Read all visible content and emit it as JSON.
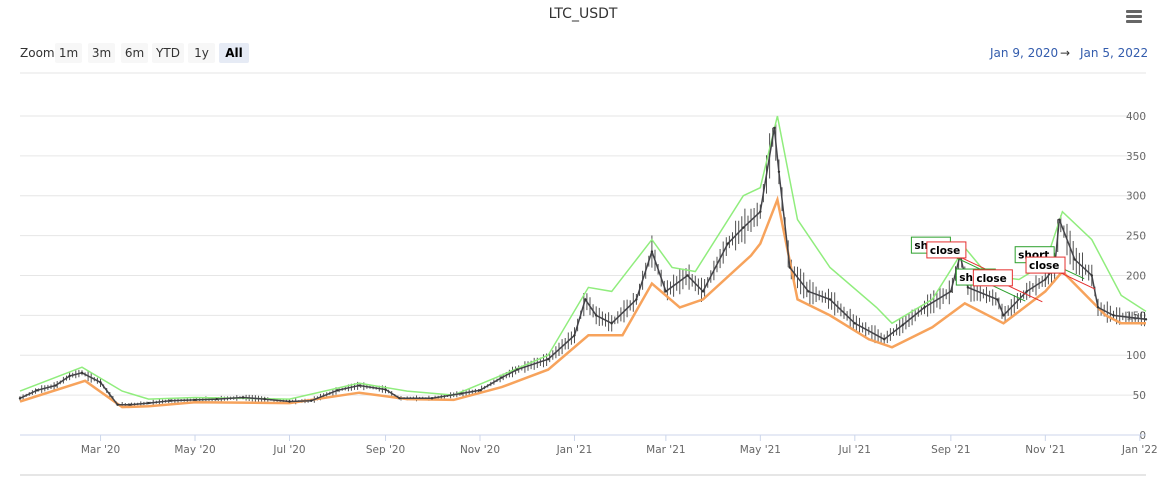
{
  "title": "LTC_USDT",
  "rangeSelector": {
    "zoom_label": "Zoom",
    "buttons": [
      "1m",
      "3m",
      "6m",
      "YTD",
      "1y",
      "All"
    ],
    "selected": "All",
    "from": "Jan 9, 2020",
    "arrow": "→",
    "to": "Jan 5, 2022"
  },
  "colors": {
    "candle": "#333333",
    "upper_band": "#90ed7d",
    "lower_band": "#f7a35c",
    "close_line": "#434348",
    "short_flag": "#2ca02c",
    "close_flag": "#e5302f",
    "grid": "#e6e6e6"
  },
  "chart_data": {
    "type": "line",
    "title": "LTC_USDT",
    "xlabel": "",
    "ylabel": "",
    "ylim": [
      0,
      420
    ],
    "y_ticks": [
      0,
      50,
      100,
      150,
      200,
      250,
      300,
      350,
      400
    ],
    "xlim": [
      "2020-01-09",
      "2022-01-05"
    ],
    "x_tick_labels": [
      {
        "date": "2020-03-01",
        "label": "Mar '20"
      },
      {
        "date": "2020-05-01",
        "label": "May '20"
      },
      {
        "date": "2020-07-01",
        "label": "Jul '20"
      },
      {
        "date": "2020-09-01",
        "label": "Sep '20"
      },
      {
        "date": "2020-11-01",
        "label": "Nov '20"
      },
      {
        "date": "2021-01-01",
        "label": "Jan '21"
      },
      {
        "date": "2021-03-01",
        "label": "Mar '21"
      },
      {
        "date": "2021-05-01",
        "label": "May '21"
      },
      {
        "date": "2021-07-01",
        "label": "Jul '21"
      },
      {
        "date": "2021-09-01",
        "label": "Sep '21"
      },
      {
        "date": "2021-11-01",
        "label": "Nov '21"
      },
      {
        "date": "2022-01-01",
        "label": "Jan '22"
      }
    ],
    "grid": true,
    "series": [
      {
        "kind": "close",
        "points": [
          [
            "2020-01-09",
            46
          ],
          [
            "2020-01-20",
            56
          ],
          [
            "2020-02-01",
            62
          ],
          [
            "2020-02-10",
            74
          ],
          [
            "2020-02-18",
            78
          ],
          [
            "2020-03-01",
            66
          ],
          [
            "2020-03-12",
            38
          ],
          [
            "2020-03-20",
            38
          ],
          [
            "2020-04-01",
            40
          ],
          [
            "2020-04-15",
            43
          ],
          [
            "2020-05-01",
            44
          ],
          [
            "2020-05-15",
            45
          ],
          [
            "2020-06-01",
            47
          ],
          [
            "2020-06-15",
            45
          ],
          [
            "2020-07-01",
            42
          ],
          [
            "2020-07-15",
            43
          ],
          [
            "2020-08-01",
            56
          ],
          [
            "2020-08-15",
            62
          ],
          [
            "2020-09-01",
            57
          ],
          [
            "2020-09-10",
            46
          ],
          [
            "2020-10-01",
            46
          ],
          [
            "2020-10-20",
            52
          ],
          [
            "2020-11-01",
            56
          ],
          [
            "2020-11-15",
            72
          ],
          [
            "2020-11-25",
            82
          ],
          [
            "2020-12-15",
            95
          ],
          [
            "2021-01-01",
            125
          ],
          [
            "2021-01-08",
            170
          ],
          [
            "2021-01-15",
            150
          ],
          [
            "2021-01-25",
            140
          ],
          [
            "2021-02-10",
            170
          ],
          [
            "2021-02-20",
            230
          ],
          [
            "2021-03-01",
            180
          ],
          [
            "2021-03-15",
            200
          ],
          [
            "2021-03-25",
            180
          ],
          [
            "2021-04-10",
            240
          ],
          [
            "2021-04-20",
            260
          ],
          [
            "2021-05-01",
            280
          ],
          [
            "2021-05-10",
            385
          ],
          [
            "2021-05-13",
            330
          ],
          [
            "2021-05-20",
            210
          ],
          [
            "2021-06-01",
            180
          ],
          [
            "2021-06-15",
            170
          ],
          [
            "2021-07-01",
            140
          ],
          [
            "2021-07-20",
            120
          ],
          [
            "2021-08-01",
            138
          ],
          [
            "2021-08-15",
            160
          ],
          [
            "2021-09-01",
            180
          ],
          [
            "2021-09-07",
            225
          ],
          [
            "2021-09-12",
            185
          ],
          [
            "2021-10-01",
            170
          ],
          [
            "2021-10-05",
            150
          ],
          [
            "2021-10-20",
            180
          ],
          [
            "2021-11-01",
            195
          ],
          [
            "2021-11-07",
            210
          ],
          [
            "2021-11-10",
            270
          ],
          [
            "2021-11-20",
            220
          ],
          [
            "2021-12-01",
            200
          ],
          [
            "2021-12-05",
            160
          ],
          [
            "2021-12-15",
            150
          ],
          [
            "2022-01-05",
            145
          ]
        ]
      },
      {
        "kind": "upper",
        "points": [
          [
            "2020-01-09",
            55
          ],
          [
            "2020-02-18",
            85
          ],
          [
            "2020-03-15",
            55
          ],
          [
            "2020-04-01",
            45
          ],
          [
            "2020-05-01",
            47
          ],
          [
            "2020-07-01",
            45
          ],
          [
            "2020-08-15",
            65
          ],
          [
            "2020-09-15",
            55
          ],
          [
            "2020-10-15",
            50
          ],
          [
            "2020-11-15",
            75
          ],
          [
            "2020-12-15",
            100
          ],
          [
            "2021-01-10",
            185
          ],
          [
            "2021-01-25",
            180
          ],
          [
            "2021-02-20",
            245
          ],
          [
            "2021-03-05",
            210
          ],
          [
            "2021-03-20",
            205
          ],
          [
            "2021-04-20",
            300
          ],
          [
            "2021-05-01",
            310
          ],
          [
            "2021-05-12",
            400
          ],
          [
            "2021-05-25",
            270
          ],
          [
            "2021-06-15",
            210
          ],
          [
            "2021-07-15",
            160
          ],
          [
            "2021-07-25",
            140
          ],
          [
            "2021-08-20",
            170
          ],
          [
            "2021-09-10",
            235
          ],
          [
            "2021-09-25",
            200
          ],
          [
            "2021-10-15",
            195
          ],
          [
            "2021-11-01",
            215
          ],
          [
            "2021-11-12",
            280
          ],
          [
            "2021-12-01",
            245
          ],
          [
            "2021-12-20",
            175
          ],
          [
            "2022-01-05",
            155
          ]
        ]
      },
      {
        "kind": "lower",
        "points": [
          [
            "2020-01-09",
            42
          ],
          [
            "2020-02-20",
            68
          ],
          [
            "2020-03-15",
            35
          ],
          [
            "2020-04-01",
            36
          ],
          [
            "2020-05-01",
            41
          ],
          [
            "2020-07-01",
            40
          ],
          [
            "2020-08-15",
            53
          ],
          [
            "2020-09-15",
            45
          ],
          [
            "2020-10-15",
            44
          ],
          [
            "2020-11-15",
            60
          ],
          [
            "2020-12-15",
            82
          ],
          [
            "2021-01-10",
            125
          ],
          [
            "2021-02-01",
            125
          ],
          [
            "2021-02-20",
            190
          ],
          [
            "2021-03-10",
            160
          ],
          [
            "2021-03-25",
            170
          ],
          [
            "2021-04-25",
            225
          ],
          [
            "2021-05-01",
            240
          ],
          [
            "2021-05-12",
            295
          ],
          [
            "2021-05-25",
            170
          ],
          [
            "2021-06-15",
            150
          ],
          [
            "2021-07-10",
            120
          ],
          [
            "2021-07-25",
            110
          ],
          [
            "2021-08-20",
            135
          ],
          [
            "2021-09-10",
            165
          ],
          [
            "2021-10-05",
            140
          ],
          [
            "2021-11-01",
            180
          ],
          [
            "2021-11-12",
            205
          ],
          [
            "2021-12-10",
            150
          ],
          [
            "2021-12-20",
            140
          ],
          [
            "2022-01-05",
            140
          ]
        ]
      }
    ],
    "flags": [
      {
        "label": "short",
        "date": "2021-09-02",
        "value": 228,
        "type": "short"
      },
      {
        "label": "close",
        "date": "2021-09-12",
        "value": 222,
        "type": "close"
      },
      {
        "label": "short",
        "date": "2021-10-01",
        "value": 188,
        "type": "short"
      },
      {
        "label": "close",
        "date": "2021-10-12",
        "value": 187,
        "type": "close"
      },
      {
        "label": "short",
        "date": "2021-11-08",
        "value": 216,
        "type": "short"
      },
      {
        "label": "close",
        "date": "2021-11-15",
        "value": 203,
        "type": "close"
      }
    ]
  }
}
